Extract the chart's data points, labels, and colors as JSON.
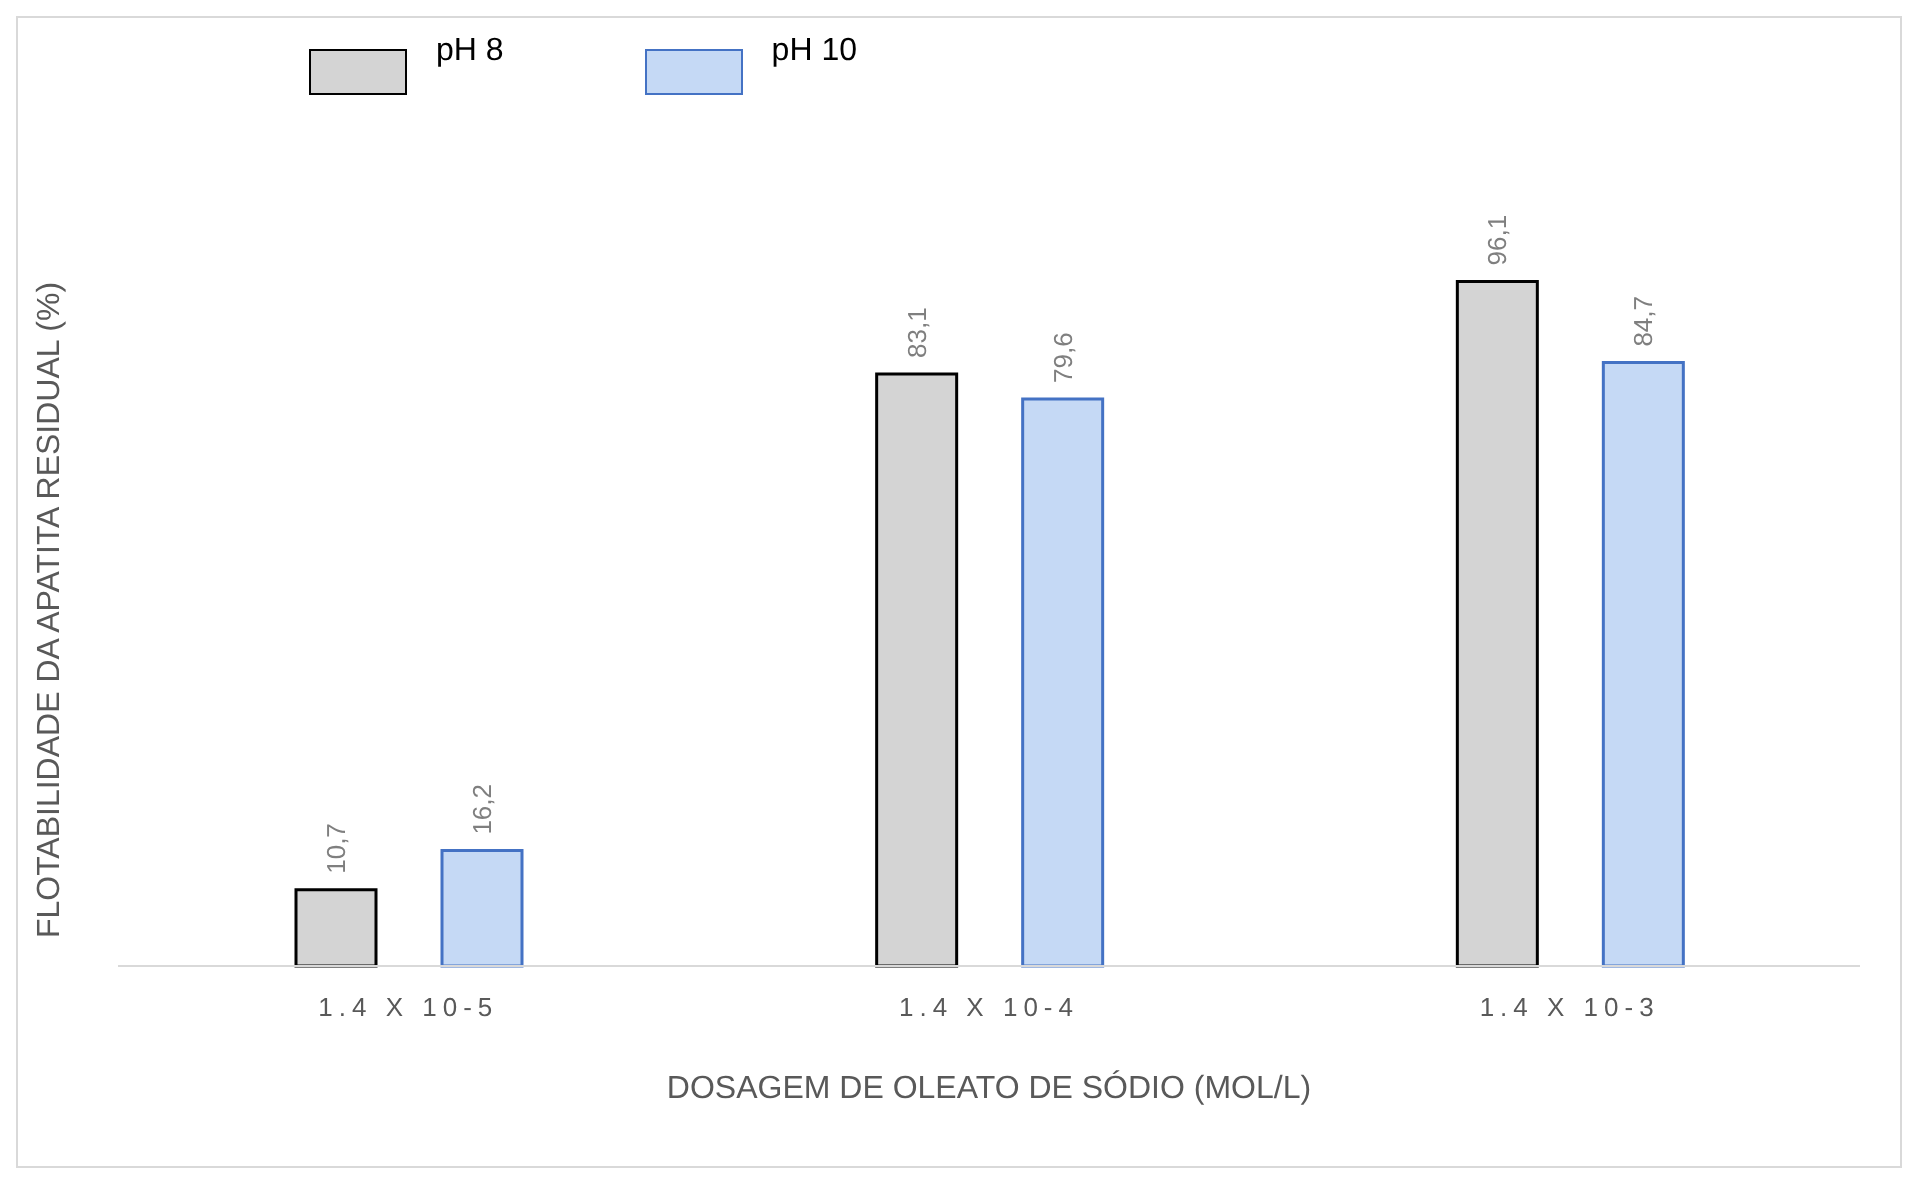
{
  "chart_data": {
    "type": "bar",
    "xlabel": "DOSAGEM DE OLEATO DE SÓDIO (MOL/L)",
    "ylabel": "FLOTABILIDADE DA APATITA RESIDUAL (%)",
    "categories": [
      "1.4 X 10-5",
      "1.4 X 10-4",
      "1.4 X 10-3"
    ],
    "series": [
      {
        "name": "pH 8",
        "color": "#d4d4d4",
        "values": [
          10.7,
          83.1,
          96.1
        ],
        "value_labels": [
          "10,7",
          "83,1",
          "96,1"
        ]
      },
      {
        "name": "pH 10",
        "color": "#c5d9f5",
        "values": [
          16.2,
          79.6,
          84.7
        ],
        "value_labels": [
          "16,2",
          "79,6",
          "84,7"
        ]
      }
    ],
    "legend": "top left"
  }
}
